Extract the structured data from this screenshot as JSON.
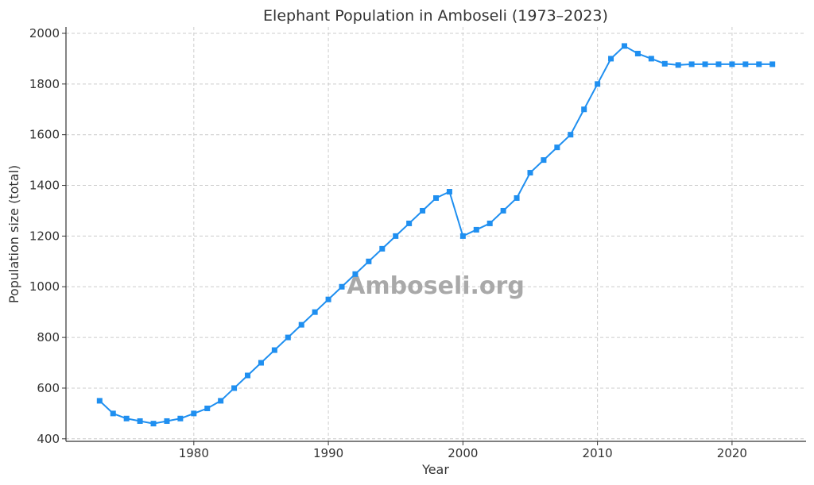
{
  "chart_data": {
    "type": "line",
    "title": "Elephant Population in Amboseli (1973–2023)",
    "xlabel": "Year",
    "ylabel": "Population size (total)",
    "xlim": [
      1970.5,
      2025.5
    ],
    "ylim": [
      390,
      2025
    ],
    "xticks": [
      1980,
      1990,
      2000,
      2010,
      2020
    ],
    "yticks": [
      400,
      600,
      800,
      1000,
      1200,
      1400,
      1600,
      1800,
      2000
    ],
    "grid": true,
    "watermark": "Amboseli.org",
    "series_color": "#1f8ff0",
    "marker": "square",
    "x": [
      1973,
      1974,
      1975,
      1976,
      1977,
      1978,
      1979,
      1980,
      1981,
      1982,
      1983,
      1984,
      1985,
      1986,
      1987,
      1988,
      1989,
      1990,
      1991,
      1992,
      1993,
      1994,
      1995,
      1996,
      1997,
      1998,
      1999,
      2000,
      2001,
      2002,
      2003,
      2004,
      2005,
      2006,
      2007,
      2008,
      2009,
      2010,
      2011,
      2012,
      2013,
      2014,
      2015,
      2016,
      2017,
      2018,
      2019,
      2020,
      2021,
      2022,
      2023
    ],
    "y": [
      550,
      500,
      480,
      470,
      460,
      470,
      480,
      500,
      520,
      550,
      600,
      650,
      700,
      750,
      800,
      850,
      900,
      950,
      1000,
      1050,
      1100,
      1150,
      1200,
      1250,
      1300,
      1350,
      1375,
      1200,
      1225,
      1250,
      1300,
      1350,
      1450,
      1500,
      1550,
      1600,
      1700,
      1800,
      1900,
      1950,
      1920,
      1900,
      1880,
      1875,
      1878,
      1878,
      1878,
      1878,
      1878,
      1878,
      1878
    ]
  }
}
